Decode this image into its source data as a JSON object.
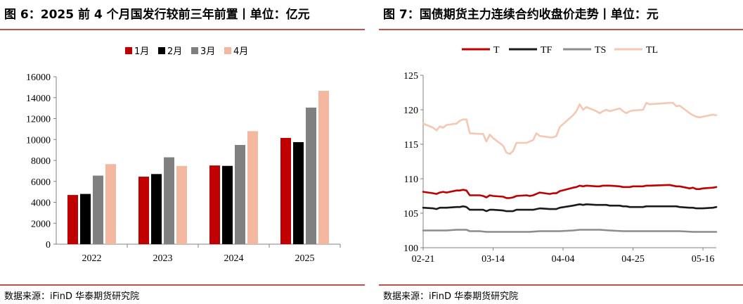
{
  "left": {
    "title": "图 6：2025 前 4 个月国发行较前三年前置丨单位：亿元",
    "source": "数据来源：iFinD  华泰期货研究院",
    "chart_data": {
      "type": "bar",
      "categories": [
        "2022",
        "2023",
        "2024",
        "2025"
      ],
      "series": [
        {
          "name": "1月",
          "color": "#c00000",
          "values": [
            4700,
            6450,
            7520,
            10150
          ]
        },
        {
          "name": "2月",
          "color": "#000000",
          "values": [
            4800,
            6700,
            7480,
            9750
          ]
        },
        {
          "name": "3月",
          "color": "#808080",
          "values": [
            6550,
            8300,
            9480,
            13050
          ]
        },
        {
          "name": "4月",
          "color": "#f4b8a0",
          "values": [
            7650,
            7480,
            10800,
            14650
          ]
        }
      ],
      "ylim": [
        0,
        16000
      ],
      "yticks": [
        "0",
        "2000",
        "4000",
        "6000",
        "8000",
        "10000",
        "12000",
        "14000",
        "16000"
      ],
      "legend_position": "top-center",
      "grid": false
    }
  },
  "right": {
    "title": "图 7：国债期货主力连续合约收盘价走势丨单位：元",
    "source": "数据来源：iFinD  华泰期货研究院",
    "chart_data": {
      "type": "line",
      "x_range": [
        "02-21",
        "05-20"
      ],
      "xticks": [
        "02-21",
        "03-14",
        "04-04",
        "04-25",
        "05-16"
      ],
      "ylim": [
        100,
        125
      ],
      "yticks": [
        "100",
        "105",
        "110",
        "115",
        "120",
        "125"
      ],
      "legend_position": "top-center",
      "grid": false,
      "series": [
        {
          "name": "T",
          "color": "#c00000",
          "points": [
            [
              "02-21",
              108.1
            ],
            [
              "02-24",
              107.9
            ],
            [
              "02-25",
              107.8
            ],
            [
              "02-26",
              108.0
            ],
            [
              "02-27",
              108.1
            ],
            [
              "02-28",
              108.0
            ],
            [
              "03-03",
              108.3
            ],
            [
              "03-04",
              108.3
            ],
            [
              "03-05",
              108.4
            ],
            [
              "03-06",
              108.3
            ],
            [
              "03-07",
              107.6
            ],
            [
              "03-10",
              107.6
            ],
            [
              "03-11",
              107.5
            ],
            [
              "03-12",
              107.3
            ],
            [
              "03-13",
              107.6
            ],
            [
              "03-14",
              107.5
            ],
            [
              "03-17",
              107.4
            ],
            [
              "03-18",
              107.2
            ],
            [
              "03-19",
              107.2
            ],
            [
              "03-20",
              107.3
            ],
            [
              "03-21",
              107.5
            ],
            [
              "03-24",
              107.6
            ],
            [
              "03-25",
              107.5
            ],
            [
              "03-26",
              107.6
            ],
            [
              "03-27",
              107.8
            ],
            [
              "03-28",
              108.0
            ],
            [
              "03-31",
              107.8
            ],
            [
              "04-01",
              107.9
            ],
            [
              "04-02",
              107.9
            ],
            [
              "04-03",
              108.2
            ],
            [
              "04-07",
              108.7
            ],
            [
              "04-08",
              108.8
            ],
            [
              "04-09",
              109.0
            ],
            [
              "04-10",
              108.9
            ],
            [
              "04-11",
              109.0
            ],
            [
              "04-14",
              108.9
            ],
            [
              "04-15",
              108.9
            ],
            [
              "04-16",
              109.0
            ],
            [
              "04-17",
              109.0
            ],
            [
              "04-18",
              109.0
            ],
            [
              "04-21",
              108.9
            ],
            [
              "04-22",
              108.8
            ],
            [
              "04-23",
              108.8
            ],
            [
              "04-24",
              108.8
            ],
            [
              "04-25",
              108.9
            ],
            [
              "04-28",
              108.9
            ],
            [
              "04-29",
              109.0
            ],
            [
              "04-30",
              109.0
            ],
            [
              "05-06",
              109.1
            ],
            [
              "05-07",
              109.0
            ],
            [
              "05-08",
              108.9
            ],
            [
              "05-09",
              108.9
            ],
            [
              "05-12",
              108.6
            ],
            [
              "05-13",
              108.7
            ],
            [
              "05-14",
              108.5
            ],
            [
              "05-15",
              108.5
            ],
            [
              "05-16",
              108.6
            ],
            [
              "05-19",
              108.7
            ],
            [
              "05-20",
              108.8
            ]
          ]
        },
        {
          "name": "TF",
          "color": "#1a1a1a",
          "points": [
            [
              "02-21",
              105.8
            ],
            [
              "02-24",
              105.7
            ],
            [
              "02-25",
              105.6
            ],
            [
              "02-26",
              105.8
            ],
            [
              "02-27",
              105.8
            ],
            [
              "02-28",
              105.8
            ],
            [
              "03-03",
              105.9
            ],
            [
              "03-04",
              105.9
            ],
            [
              "03-05",
              106.0
            ],
            [
              "03-06",
              105.9
            ],
            [
              "03-07",
              105.5
            ],
            [
              "03-10",
              105.5
            ],
            [
              "03-11",
              105.5
            ],
            [
              "03-12",
              105.3
            ],
            [
              "03-13",
              105.5
            ],
            [
              "03-14",
              105.5
            ],
            [
              "03-17",
              105.4
            ],
            [
              "03-18",
              105.3
            ],
            [
              "03-19",
              105.3
            ],
            [
              "03-20",
              105.3
            ],
            [
              "03-21",
              105.5
            ],
            [
              "03-24",
              105.5
            ],
            [
              "03-25",
              105.5
            ],
            [
              "03-26",
              105.5
            ],
            [
              "03-27",
              105.6
            ],
            [
              "03-28",
              105.7
            ],
            [
              "03-31",
              105.6
            ],
            [
              "04-01",
              105.6
            ],
            [
              "04-02",
              105.6
            ],
            [
              "04-03",
              105.8
            ],
            [
              "04-07",
              106.1
            ],
            [
              "04-08",
              106.2
            ],
            [
              "04-09",
              106.3
            ],
            [
              "04-10",
              106.2
            ],
            [
              "04-11",
              106.3
            ],
            [
              "04-14",
              106.2
            ],
            [
              "04-15",
              106.2
            ],
            [
              "04-16",
              106.2
            ],
            [
              "04-17",
              106.2
            ],
            [
              "04-18",
              106.1
            ],
            [
              "04-21",
              106.1
            ],
            [
              "04-22",
              106.0
            ],
            [
              "04-23",
              106.0
            ],
            [
              "04-24",
              105.9
            ],
            [
              "04-25",
              105.9
            ],
            [
              "04-28",
              105.9
            ],
            [
              "04-29",
              106.0
            ],
            [
              "04-30",
              106.0
            ],
            [
              "05-06",
              106.0
            ],
            [
              "05-07",
              106.0
            ],
            [
              "05-08",
              106.0
            ],
            [
              "05-09",
              105.9
            ],
            [
              "05-12",
              105.8
            ],
            [
              "05-13",
              105.8
            ],
            [
              "05-14",
              105.7
            ],
            [
              "05-15",
              105.7
            ],
            [
              "05-16",
              105.7
            ],
            [
              "05-19",
              105.8
            ],
            [
              "05-20",
              105.9
            ]
          ]
        },
        {
          "name": "TS",
          "color": "#8c8c8c",
          "points": [
            [
              "02-21",
              102.5
            ],
            [
              "02-24",
              102.5
            ],
            [
              "02-28",
              102.5
            ],
            [
              "03-03",
              102.6
            ],
            [
              "03-06",
              102.6
            ],
            [
              "03-07",
              102.4
            ],
            [
              "03-10",
              102.4
            ],
            [
              "03-12",
              102.3
            ],
            [
              "03-14",
              102.3
            ],
            [
              "03-18",
              102.3
            ],
            [
              "03-21",
              102.3
            ],
            [
              "03-25",
              102.3
            ],
            [
              "03-28",
              102.4
            ],
            [
              "04-01",
              102.4
            ],
            [
              "04-03",
              102.4
            ],
            [
              "04-07",
              102.5
            ],
            [
              "04-09",
              102.6
            ],
            [
              "04-11",
              102.6
            ],
            [
              "04-15",
              102.6
            ],
            [
              "04-18",
              102.5
            ],
            [
              "04-22",
              102.4
            ],
            [
              "04-25",
              102.4
            ],
            [
              "04-29",
              102.4
            ],
            [
              "05-06",
              102.4
            ],
            [
              "05-09",
              102.4
            ],
            [
              "05-13",
              102.3
            ],
            [
              "05-16",
              102.3
            ],
            [
              "05-20",
              102.3
            ]
          ]
        },
        {
          "name": "TL",
          "color": "#f6c7b3",
          "points": [
            [
              "02-21",
              118.0
            ],
            [
              "02-24",
              117.4
            ],
            [
              "02-25",
              117.0
            ],
            [
              "02-26",
              117.6
            ],
            [
              "02-27",
              117.4
            ],
            [
              "02-28",
              117.8
            ],
            [
              "03-03",
              118.0
            ],
            [
              "03-04",
              118.4
            ],
            [
              "03-05",
              118.6
            ],
            [
              "03-06",
              118.6
            ],
            [
              "03-07",
              116.6
            ],
            [
              "03-10",
              116.5
            ],
            [
              "03-11",
              116.5
            ],
            [
              "03-12",
              115.4
            ],
            [
              "03-13",
              116.4
            ],
            [
              "03-14",
              115.9
            ],
            [
              "03-17",
              114.8
            ],
            [
              "03-18",
              113.8
            ],
            [
              "03-19",
              113.6
            ],
            [
              "03-20",
              114.0
            ],
            [
              "03-21",
              115.2
            ],
            [
              "03-24",
              115.2
            ],
            [
              "03-25",
              115.4
            ],
            [
              "03-26",
              115.6
            ],
            [
              "03-27",
              116.6
            ],
            [
              "03-28",
              116.2
            ],
            [
              "03-31",
              116.0
            ],
            [
              "04-01",
              116.0
            ],
            [
              "04-02",
              116.2
            ],
            [
              "04-03",
              117.5
            ],
            [
              "04-07",
              119.2
            ],
            [
              "04-08",
              119.8
            ],
            [
              "04-09",
              120.8
            ],
            [
              "04-10",
              120.0
            ],
            [
              "04-11",
              120.4
            ],
            [
              "04-14",
              119.8
            ],
            [
              "04-15",
              119.5
            ],
            [
              "04-16",
              119.8
            ],
            [
              "04-17",
              120.0
            ],
            [
              "04-18",
              119.8
            ],
            [
              "04-21",
              120.2
            ],
            [
              "04-22",
              119.8
            ],
            [
              "04-23",
              119.5
            ],
            [
              "04-24",
              119.8
            ],
            [
              "04-25",
              119.9
            ],
            [
              "04-28",
              120.0
            ],
            [
              "04-29",
              121.0
            ],
            [
              "04-30",
              120.8
            ],
            [
              "05-06",
              121.0
            ],
            [
              "05-07",
              121.0
            ],
            [
              "05-08",
              120.5
            ],
            [
              "05-09",
              120.6
            ],
            [
              "05-12",
              119.5
            ],
            [
              "05-13",
              119.2
            ],
            [
              "05-14",
              119.0
            ],
            [
              "05-15",
              118.9
            ],
            [
              "05-16",
              119.0
            ],
            [
              "05-19",
              119.3
            ],
            [
              "05-20",
              119.2
            ]
          ]
        }
      ]
    }
  }
}
